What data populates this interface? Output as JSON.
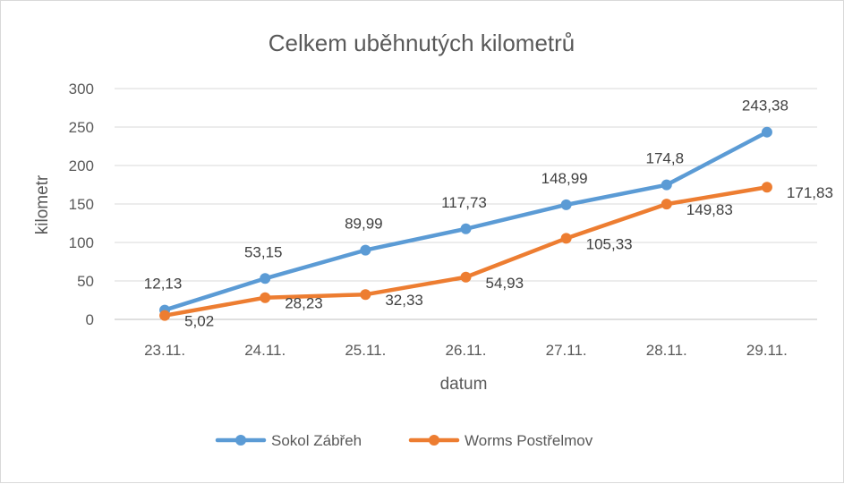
{
  "chart_data": {
    "type": "line",
    "title": "Celkem uběhnutých kilometrů",
    "xlabel": "datum",
    "ylabel": "kilometr",
    "categories": [
      "23.11.",
      "24.11.",
      "25.11.",
      "26.11.",
      "27.11.",
      "28.11.",
      "29.11."
    ],
    "ylim": [
      0,
      300
    ],
    "yticks": [
      0,
      50,
      100,
      150,
      200,
      250,
      300
    ],
    "grid": true,
    "legend": "bottom",
    "series": [
      {
        "name": "Sokol Zábřeh",
        "color": "#5b9bd5",
        "values": [
          12.13,
          53.15,
          89.99,
          117.73,
          148.99,
          174.8,
          243.38
        ],
        "labels": [
          "12,13",
          "53,15",
          "89,99",
          "117,73",
          "148,99",
          "174,8",
          "243,38"
        ]
      },
      {
        "name": "Worms Postřelmov",
        "color": "#ed7d31",
        "values": [
          5.02,
          28.23,
          32.33,
          54.93,
          105.33,
          149.83,
          171.83
        ],
        "labels": [
          "5,02",
          "28,23",
          "32,33",
          "54,93",
          "105,33",
          "149,83",
          "171,83"
        ]
      }
    ]
  }
}
